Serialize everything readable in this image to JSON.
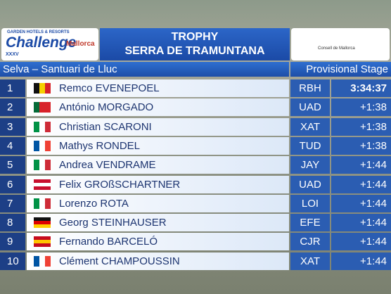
{
  "header": {
    "sponsor": "GARDEN HOTELS & RESORTS",
    "logo": "Challenge",
    "logo_region": "Mallorca",
    "edition": "XXXV",
    "title_line1": "TROPHY",
    "title_line2": "SERRA DE TRAMUNTANA",
    "partner": "Consell de Mallorca"
  },
  "subheader": {
    "stage": "Selva – Santuari de Lluc",
    "label": "Provisional Stage"
  },
  "table": {
    "rows": [
      {
        "rank": "1",
        "name": "Remco EVENEPOEL",
        "team": "RBH",
        "time": "3:34:37",
        "flag": {
          "dir": "v",
          "stripes": [
            "#111111",
            "#f5d000",
            "#d8232a"
          ]
        }
      },
      {
        "rank": "2",
        "name": "António MORGADO",
        "team": "UAD",
        "time": "+1:38",
        "flag": {
          "dir": "v",
          "stripes": [
            "#046a38",
            "#d8232a",
            "#d8232a"
          ]
        }
      },
      {
        "rank": "3",
        "name": "Christian SCARONI",
        "team": "XAT",
        "time": "+1:38",
        "flag": {
          "dir": "v",
          "stripes": [
            "#009246",
            "#ffffff",
            "#ce2b37"
          ]
        }
      },
      {
        "rank": "4",
        "name": "Mathys RONDEL",
        "team": "TUD",
        "time": "+1:38",
        "flag": {
          "dir": "v",
          "stripes": [
            "#0055a4",
            "#ffffff",
            "#ef4135"
          ]
        }
      },
      {
        "rank": "5",
        "name": "Andrea VENDRAME",
        "team": "JAY",
        "time": "+1:44",
        "flag": {
          "dir": "v",
          "stripes": [
            "#009246",
            "#ffffff",
            "#ce2b37"
          ]
        }
      },
      {
        "rank": "6",
        "name": "Felix GROßSCHARTNER",
        "team": "UAD",
        "time": "+1:44",
        "flag": {
          "dir": "h",
          "stripes": [
            "#c8102e",
            "#ffffff",
            "#c8102e"
          ]
        }
      },
      {
        "rank": "7",
        "name": "Lorenzo ROTA",
        "team": "LOI",
        "time": "+1:44",
        "flag": {
          "dir": "v",
          "stripes": [
            "#009246",
            "#ffffff",
            "#ce2b37"
          ]
        }
      },
      {
        "rank": "8",
        "name": "Georg STEINHAUSER",
        "team": "EFE",
        "time": "+1:44",
        "flag": {
          "dir": "h",
          "stripes": [
            "#111111",
            "#dd0000",
            "#ffce00"
          ]
        }
      },
      {
        "rank": "9",
        "name": "Fernando BARCELÓ",
        "team": "CJR",
        "time": "+1:44",
        "flag": {
          "dir": "h",
          "stripes": [
            "#c60b1e",
            "#ffc400",
            "#c60b1e"
          ]
        }
      },
      {
        "rank": "10",
        "name": "Clément CHAMPOUSSIN",
        "team": "XAT",
        "time": "+1:44",
        "flag": {
          "dir": "v",
          "stripes": [
            "#0055a4",
            "#ffffff",
            "#ef4135"
          ]
        }
      }
    ]
  }
}
